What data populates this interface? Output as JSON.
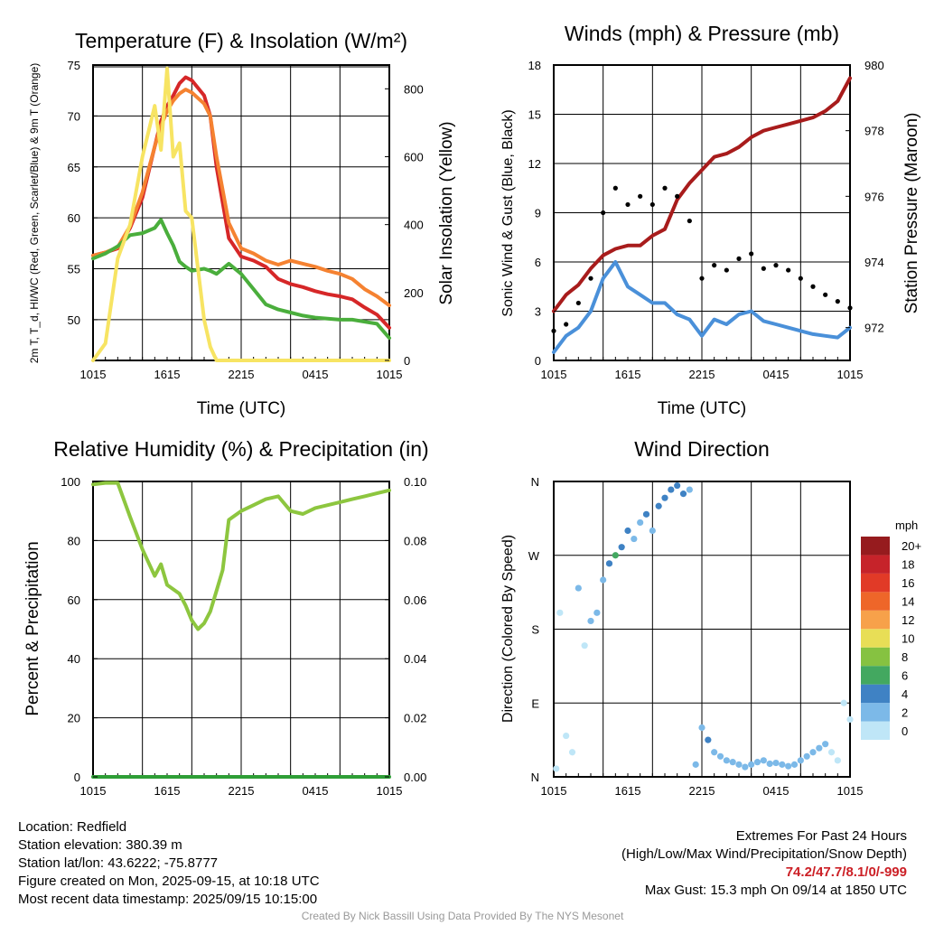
{
  "chart_data": [
    {
      "type": "line",
      "title": "Temperature (F) & Insolation (W/m²)",
      "xlabel": "Time (UTC)",
      "ylabel": "2m T, T_d, HI/WC (Red, Green, Scarlet/Blue) & 9m T (Orange)",
      "y2label": "Solar Insolation (Yellow)",
      "x_ticks": [
        "1015",
        "1615",
        "2215",
        "0415",
        "1015"
      ],
      "ylim": [
        46,
        75
      ],
      "y_ticks": [
        50,
        55,
        60,
        65,
        70,
        75
      ],
      "y2lim": [
        0,
        870
      ],
      "y2_ticks": [
        0,
        200,
        400,
        600,
        800
      ],
      "grid": true,
      "x_hours": [
        0,
        1,
        2,
        3,
        4,
        5,
        5.5,
        6,
        6.5,
        7,
        7.5,
        8,
        9,
        9.5,
        10,
        11,
        12,
        13,
        14,
        15,
        16,
        17,
        18,
        19,
        20,
        21,
        22,
        23,
        24
      ],
      "series": [
        {
          "color": "#d62728",
          "axis": "left",
          "values": [
            56.3,
            56.6,
            57.0,
            59.0,
            62.0,
            67.0,
            69.5,
            71.0,
            72.0,
            73.2,
            73.8,
            73.5,
            72.0,
            70.0,
            65.0,
            58.0,
            56.2,
            55.8,
            55.2,
            54.0,
            53.5,
            53.2,
            52.8,
            52.5,
            52.3,
            52.0,
            51.2,
            50.5,
            49.2
          ]
        },
        {
          "color": "#f58231",
          "axis": "left",
          "values": [
            56.3,
            56.6,
            57.1,
            59.2,
            62.5,
            67.0,
            69.0,
            70.5,
            71.5,
            72.2,
            72.6,
            72.3,
            71.2,
            70.0,
            66.0,
            59.5,
            57.0,
            56.5,
            55.8,
            55.4,
            55.8,
            55.5,
            55.2,
            54.8,
            54.5,
            54.0,
            53.0,
            52.3,
            51.4
          ]
        },
        {
          "color": "#4aae3c",
          "axis": "left",
          "values": [
            56.0,
            56.5,
            57.2,
            58.3,
            58.5,
            59.0,
            59.8,
            58.5,
            57.3,
            55.7,
            55.2,
            54.8,
            55.0,
            54.8,
            54.5,
            55.5,
            54.5,
            53.0,
            51.5,
            51.0,
            50.7,
            50.4,
            50.2,
            50.1,
            50.0,
            50.0,
            49.8,
            49.6,
            48.2
          ]
        },
        {
          "color": "#f7e463",
          "axis": "right",
          "values": [
            0,
            50,
            300,
            400,
            600,
            750,
            620,
            860,
            600,
            640,
            440,
            420,
            120,
            40,
            0,
            0,
            0,
            0,
            0,
            0,
            0,
            0,
            0,
            0,
            0,
            0,
            0,
            0,
            0
          ]
        }
      ]
    },
    {
      "type": "line",
      "title": "Winds (mph) & Pressure (mb)",
      "xlabel": "Time (UTC)",
      "ylabel": "Sonic Wind & Gust (Blue, Black)",
      "y2label": "Station Pressure (Maroon)",
      "x_ticks": [
        "1015",
        "1615",
        "2215",
        "0415",
        "1015"
      ],
      "ylim": [
        0,
        18
      ],
      "y_ticks": [
        0,
        3,
        6,
        9,
        12,
        15,
        18
      ],
      "y2lim": [
        971.0,
        980.0
      ],
      "y2_ticks": [
        972,
        974,
        976,
        978,
        980
      ],
      "grid": true,
      "x_hours": [
        0,
        1,
        2,
        3,
        4,
        5,
        6,
        7,
        8,
        9,
        10,
        11,
        12,
        13,
        14,
        15,
        16,
        17,
        18,
        19,
        20,
        21,
        22,
        23,
        24
      ],
      "series": [
        {
          "color": "#4a90d9",
          "axis": "left",
          "values": [
            0.5,
            1.5,
            2.0,
            3.0,
            5.0,
            6.0,
            4.5,
            4.0,
            3.5,
            3.5,
            2.8,
            2.5,
            1.5,
            2.5,
            2.2,
            2.8,
            3.0,
            2.4,
            2.2,
            2.0,
            1.8,
            1.6,
            1.5,
            1.4,
            2.0
          ]
        },
        {
          "color": "#a81c1c",
          "axis": "right",
          "values": [
            972.5,
            973.0,
            973.3,
            973.8,
            974.2,
            974.4,
            974.5,
            974.5,
            974.8,
            975.0,
            975.9,
            976.4,
            976.8,
            977.2,
            977.3,
            977.5,
            977.8,
            978.0,
            978.1,
            978.2,
            978.3,
            978.4,
            978.6,
            978.9,
            979.6
          ]
        },
        {
          "type": "scatter",
          "color": "#000000",
          "axis": "left",
          "values": [
            1.8,
            2.2,
            3.5,
            5.0,
            9.0,
            10.5,
            9.5,
            10.0,
            9.5,
            10.5,
            10.0,
            8.5,
            5.0,
            5.8,
            5.5,
            6.2,
            6.5,
            5.6,
            5.8,
            5.5,
            5.0,
            4.5,
            4.0,
            3.6,
            3.2
          ]
        }
      ]
    },
    {
      "type": "line",
      "title": "Relative Humidity (%) & Precipitation (in)",
      "ylabel": "Percent & Precipitation",
      "x_ticks": [
        "1015",
        "1615",
        "2215",
        "0415",
        "1015"
      ],
      "ylim": [
        0,
        100
      ],
      "y_ticks": [
        0,
        20,
        40,
        60,
        80,
        100
      ],
      "y2lim": [
        0,
        0.1
      ],
      "y2_ticks": [
        "0.00",
        "0.02",
        "0.04",
        "0.06",
        "0.08",
        "0.10"
      ],
      "grid": true,
      "x_hours": [
        0,
        1,
        2,
        3,
        4,
        5,
        5.5,
        6,
        7,
        7.5,
        8,
        8.5,
        9,
        9.5,
        10,
        10.5,
        11,
        12,
        13,
        14,
        15,
        16,
        17,
        18,
        19,
        20,
        21,
        22,
        23,
        24
      ],
      "series": [
        {
          "color": "#8dc63f",
          "axis": "left",
          "values": [
            99,
            99.5,
            99.5,
            88,
            77,
            68,
            72,
            65,
            62,
            58,
            53,
            50,
            52,
            56,
            63,
            70,
            87,
            90,
            92,
            94,
            95,
            90,
            89,
            91,
            92,
            93,
            94,
            95,
            96,
            97
          ]
        },
        {
          "color": "#2e9e36",
          "axis": "right",
          "values": [
            0,
            0,
            0,
            0,
            0,
            0,
            0,
            0,
            0,
            0,
            0,
            0,
            0,
            0,
            0,
            0,
            0,
            0,
            0,
            0,
            0,
            0,
            0,
            0,
            0,
            0,
            0,
            0,
            0,
            0
          ]
        }
      ]
    },
    {
      "type": "scatter",
      "title": "Wind Direction",
      "ylabel": "Direction (Colored By Speed)",
      "x_ticks": [
        "1015",
        "1615",
        "2215",
        "0415",
        "1015"
      ],
      "y_ticks": [
        "N",
        "E",
        "S",
        "W",
        "N"
      ],
      "ylim": [
        0,
        360
      ],
      "grid": true,
      "x_hours": [
        0.2,
        0.5,
        1,
        1.5,
        2,
        2.5,
        3,
        3.5,
        4,
        4.5,
        5,
        5.5,
        6,
        6.5,
        7,
        7.5,
        8,
        8.5,
        9,
        9.5,
        10,
        10.5,
        11,
        11.5,
        12,
        12.5,
        13,
        13.5,
        14,
        14.5,
        15,
        15.5,
        16,
        16.5,
        17,
        17.5,
        18,
        18.5,
        19,
        19.5,
        20,
        20.5,
        21,
        21.5,
        22,
        22.5,
        23,
        23.5,
        24
      ],
      "directions": [
        10,
        200,
        50,
        30,
        230,
        160,
        190,
        200,
        240,
        260,
        270,
        280,
        300,
        290,
        310,
        320,
        300,
        330,
        340,
        350,
        355,
        345,
        350,
        15,
        60,
        45,
        30,
        25,
        20,
        18,
        15,
        12,
        15,
        18,
        20,
        16,
        17,
        15,
        13,
        15,
        20,
        25,
        30,
        35,
        40,
        30,
        20,
        90,
        70
      ],
      "speeds": [
        1,
        1,
        1,
        1,
        2,
        1,
        2,
        2,
        3,
        5,
        7,
        4,
        4,
        3,
        3,
        4,
        3,
        4,
        4,
        4,
        4,
        4,
        3,
        2,
        3,
        4,
        3,
        3,
        2,
        2,
        3,
        2,
        3,
        2,
        2,
        2,
        2,
        2,
        2,
        2,
        2,
        2,
        2,
        3,
        2,
        1,
        1,
        1,
        1
      ],
      "colorbar": {
        "label": "mph",
        "levels": [
          "0",
          "2",
          "4",
          "6",
          "8",
          "10",
          "12",
          "14",
          "16",
          "18",
          "20+"
        ],
        "colors": [
          "#bfe6f7",
          "#7cb9e8",
          "#3f82c4",
          "#43a860",
          "#86c241",
          "#e8de56",
          "#f7a14a",
          "#ee6629",
          "#e13a27",
          "#c6232a",
          "#961b1e"
        ]
      }
    }
  ],
  "footer": {
    "location": "Location: Redfield",
    "elevation": "Station elevation: 380.39 m",
    "latlon": "Station lat/lon: 43.6222; -75.8777",
    "created": "Figure created on Mon, 2025-09-15, at 10:18 UTC",
    "recent": "Most recent data timestamp: 2025/09/15 10:15:00",
    "extremes_title": "Extremes For Past 24 Hours",
    "extremes_desc": "(High/Low/Max Wind/Precipitation/Snow Depth)",
    "extremes_values": "74.2/47.7/8.1/0/-999",
    "max_gust": "Max Gust: 15.3 mph On 09/14 at 1850 UTC",
    "credit": "Created By Nick Bassill Using Data Provided By The NYS Mesonet"
  }
}
